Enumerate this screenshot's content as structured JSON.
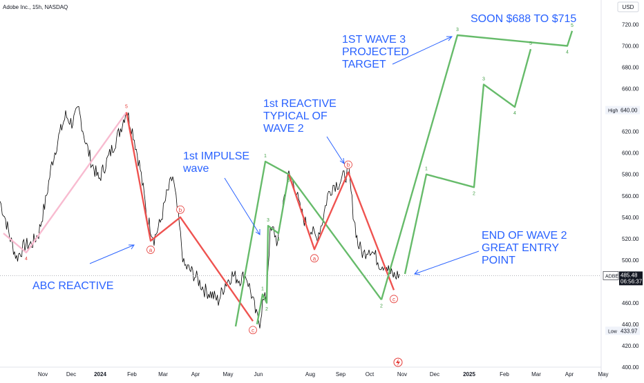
{
  "header": {
    "symbol_line": "Adobe Inc., 15h, NASDAQ",
    "currency": "USD"
  },
  "chart_data": {
    "type": "line",
    "title": "Adobe Inc., 15h, NASDAQ",
    "ylim": [
      400,
      730
    ],
    "y_ticks": [
      "720.00",
      "700.00",
      "680.00",
      "660.00",
      "640.00",
      "620.00",
      "600.00",
      "580.00",
      "560.00",
      "540.00",
      "520.00",
      "500.00",
      "480.00",
      "460.00",
      "440.00",
      "420.00",
      "400.00"
    ],
    "x_ticks": [
      "Nov",
      "Dec",
      "2024",
      "Feb",
      "Mar",
      "Apr",
      "May",
      "Jun",
      "Aug",
      "Sep",
      "Oct",
      "Nov",
      "Dec",
      "2025",
      "Feb",
      "Mar",
      "Apr",
      "May"
    ],
    "price_badge": {
      "symbol": "ADBE",
      "price": "485.48",
      "time": "06:56:37",
      "value": 485.48
    },
    "high": {
      "label": "High",
      "value": "640.00"
    },
    "low": {
      "label": "Low",
      "value": "433.97"
    },
    "series": [
      {
        "type": "price",
        "color": "#000000",
        "anchors": [
          [
            0,
            555
          ],
          [
            8,
            538
          ],
          [
            15,
            520
          ],
          [
            24,
            502
          ],
          [
            36,
            514
          ],
          [
            46,
            515
          ],
          [
            56,
            525
          ],
          [
            66,
            555
          ],
          [
            75,
            590
          ],
          [
            85,
            615
          ],
          [
            95,
            635
          ],
          [
            104,
            628
          ],
          [
            114,
            640
          ],
          [
            124,
            610
          ],
          [
            133,
            590
          ],
          [
            143,
            575
          ],
          [
            153,
            590
          ],
          [
            163,
            605
          ],
          [
            173,
            620
          ],
          [
            183,
            640
          ],
          [
            193,
            618
          ],
          [
            203,
            585
          ],
          [
            213,
            540
          ],
          [
            223,
            520
          ],
          [
            232,
            535
          ],
          [
            241,
            560
          ],
          [
            250,
            578
          ],
          [
            258,
            540
          ],
          [
            266,
            495
          ],
          [
            276,
            490
          ],
          [
            286,
            482
          ],
          [
            296,
            472
          ],
          [
            306,
            468
          ],
          [
            316,
            462
          ],
          [
            326,
            478
          ],
          [
            336,
            486
          ],
          [
            346,
            482
          ],
          [
            356,
            486
          ],
          [
            364,
            468
          ],
          [
            371,
            448
          ],
          [
            376,
            442
          ],
          [
            380,
            460
          ],
          [
            385,
            465
          ],
          [
            391,
            525
          ],
          [
            396,
            528
          ],
          [
            402,
            515
          ],
          [
            410,
            555
          ],
          [
            418,
            580
          ],
          [
            426,
            572
          ],
          [
            434,
            548
          ],
          [
            442,
            535
          ],
          [
            450,
            528
          ],
          [
            458,
            520
          ],
          [
            466,
            535
          ],
          [
            474,
            560
          ],
          [
            482,
            570
          ],
          [
            490,
            572
          ],
          [
            498,
            578
          ],
          [
            505,
            582
          ],
          [
            511,
            545
          ],
          [
            518,
            515
          ],
          [
            526,
            505
          ],
          [
            534,
            512
          ],
          [
            542,
            505
          ],
          [
            550,
            496
          ],
          [
            558,
            496
          ],
          [
            565,
            487
          ],
          [
            572,
            485
          ],
          [
            578,
            487
          ]
        ]
      },
      {
        "type": "wave",
        "name": "",
        "color": "#f8bbd0",
        "points": [
          [
            5,
            525
          ],
          [
            38,
            507
          ],
          [
            183,
            638
          ]
        ],
        "labels": [
          {
            "text": "4",
            "index": 1,
            "color": "red"
          },
          {
            "text": "5",
            "index": 2,
            "color": "red"
          }
        ]
      },
      {
        "type": "wave",
        "color": "#ef5350",
        "points": [
          [
            183,
            638
          ],
          [
            218,
            518
          ],
          [
            261,
            540
          ],
          [
            366,
            443
          ]
        ],
        "circled": [
          {
            "text": "a",
            "index": 1
          },
          {
            "text": "b",
            "index": 2
          },
          {
            "text": "c",
            "index": 3
          }
        ]
      },
      {
        "type": "wave",
        "color": "#66bb6a",
        "points": [
          [
            341,
            438
          ],
          [
            384,
            592
          ],
          [
            418,
            580
          ],
          [
            552,
            463
          ]
        ],
        "labels": [
          {
            "text": "1",
            "index": 1
          },
          {
            "text": "5",
            "index": 2
          },
          {
            "text": "2",
            "index": 3
          }
        ]
      },
      {
        "type": "wave",
        "color": "#66bb6a",
        "points": [
          [
            372,
            440
          ],
          [
            380,
            468
          ],
          [
            386,
            460
          ],
          [
            388,
            532
          ],
          [
            403,
            525
          ],
          [
            418,
            580
          ]
        ],
        "labels": [
          {
            "text": "1",
            "index": 1
          },
          {
            "text": "2",
            "index": 2
          },
          {
            "text": "3",
            "index": 3
          },
          {
            "text": "4",
            "index": 4
          }
        ]
      },
      {
        "type": "wave",
        "color": "#ef5350",
        "points": [
          [
            418,
            580
          ],
          [
            455,
            510
          ],
          [
            504,
            582
          ],
          [
            570,
            472
          ]
        ],
        "circled": [
          {
            "text": "a",
            "index": 1
          },
          {
            "text": "b",
            "index": 2
          },
          {
            "text": "c",
            "index": 3
          }
        ]
      },
      {
        "type": "wave",
        "color": "#66bb6a",
        "points": [
          [
            552,
            463
          ],
          [
            662,
            710
          ],
          [
            821,
            700
          ],
          [
            828,
            714
          ]
        ],
        "labels": [
          {
            "text": "3",
            "index": 1
          },
          {
            "text": "4",
            "index": 2
          },
          {
            "text": "5",
            "index": 3
          }
        ]
      },
      {
        "type": "wave",
        "color": "#66bb6a",
        "points": [
          [
            586,
            487
          ],
          [
            617,
            580
          ],
          [
            686,
            568
          ],
          [
            700,
            664
          ],
          [
            745,
            643
          ],
          [
            768,
            697
          ]
        ],
        "labels": [
          {
            "text": "1",
            "index": 1
          },
          {
            "text": "2",
            "index": 2
          },
          {
            "text": "3",
            "index": 3
          },
          {
            "text": "4",
            "index": 4
          },
          {
            "text": "5",
            "index": 5
          }
        ]
      }
    ],
    "annotations": {
      "soon": "SOON $688 TO $715",
      "wave3_lines": [
        "1ST WAVE 3",
        "PROJECTED",
        "TARGET"
      ],
      "reactive_lines": [
        "1st REACTIVE",
        "TYPICAL OF",
        "WAVE 2"
      ],
      "impulse_lines": [
        "1st IMPULSE",
        "wave"
      ],
      "end_lines": [
        "END OF WAVE 2",
        "GREAT ENTRY",
        "POINT"
      ],
      "abc": "ABC REACTIVE"
    }
  }
}
